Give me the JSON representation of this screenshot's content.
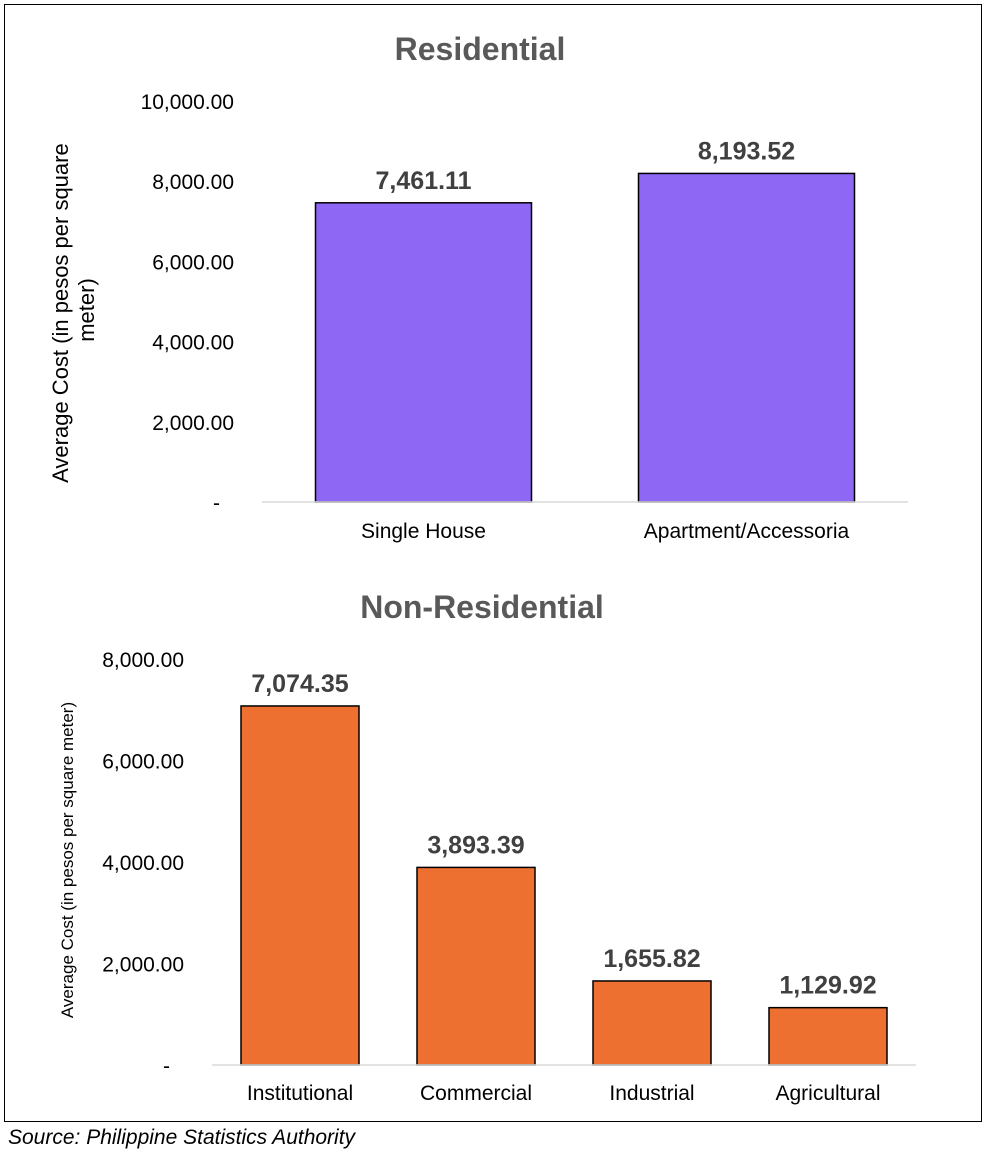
{
  "chart_data": [
    {
      "type": "bar",
      "title": "Residential",
      "ylabel": "Average Cost (in pesos per square meter)",
      "categories": [
        "Single House",
        "Apartment/Accessoria"
      ],
      "values": [
        7461.11,
        8193.52
      ],
      "data_labels": [
        "7,461.11",
        "8,193.52"
      ],
      "yticks": [
        "-",
        "2,000.00",
        "4,000.00",
        "6,000.00",
        "8,000.00",
        "10,000.00"
      ],
      "ylim": [
        0,
        10000
      ],
      "bar_color": "#8f67f5",
      "grid": false
    },
    {
      "type": "bar",
      "title": "Non-Residential",
      "ylabel": "Average Cost (in pesos per square meter)",
      "categories": [
        "Institutional",
        "Commercial",
        "Industrial",
        "Agricultural"
      ],
      "values": [
        7074.35,
        3893.39,
        1655.82,
        1129.92
      ],
      "data_labels": [
        "7,074.35",
        "3,893.39",
        "1,655.82",
        "1,129.92"
      ],
      "yticks": [
        "-",
        "2,000.00",
        "4,000.00",
        "6,000.00",
        "8,000.00"
      ],
      "ylim": [
        0,
        8000
      ],
      "bar_color": "#ed7031",
      "grid": false
    }
  ],
  "source": "Source: Philippine Statistics Authority"
}
